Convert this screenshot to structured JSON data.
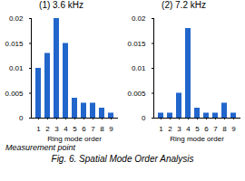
{
  "title": "Fig. 6. Spatial Mode Order Analysis",
  "annotations": [
    "Measurement point"
  ],
  "chart_data": [
    {
      "type": "bar",
      "title": "(1) 3.6 kHz",
      "xlabel": "Ring mode order",
      "categories": [
        "1",
        "2",
        "3",
        "4",
        "5",
        "6",
        "7",
        "8",
        "9"
      ],
      "values": [
        0.01,
        0.013,
        0.02,
        0.015,
        0.004,
        0.003,
        0.003,
        0.002,
        0.001
      ],
      "color": "#2266cc",
      "ylim": [
        0,
        0.02
      ],
      "yticks": [
        0,
        0.005,
        0.01,
        0.015,
        0.02
      ],
      "grid": false
    },
    {
      "type": "bar",
      "title": "(2) 7.2 kHz",
      "xlabel": "Ring mode order",
      "categories": [
        "1",
        "2",
        "3",
        "4",
        "5",
        "6",
        "7",
        "8",
        "9"
      ],
      "values": [
        0.001,
        0.001,
        0.005,
        0.018,
        0.002,
        0.001,
        0.001,
        0.003,
        0.001
      ],
      "color": "#2266cc",
      "ylim": [
        0,
        0.02
      ],
      "yticks": [
        0,
        0.005,
        0.01,
        0.015,
        0.02
      ],
      "grid": false
    }
  ]
}
